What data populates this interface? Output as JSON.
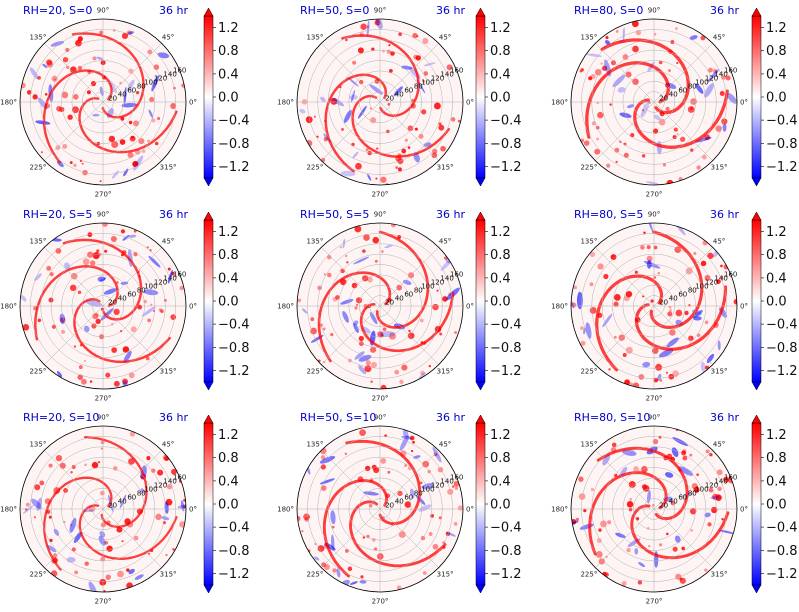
{
  "chart_data": {
    "type": "heatmap",
    "projection": "polar",
    "colormap": "bwr",
    "colors": {
      "negative": "#0000ff",
      "zero": "#ffffff",
      "positive": "#ff0000"
    },
    "angular_ticks": [
      "0°",
      "45°",
      "90°",
      "135°",
      "180°",
      "225°",
      "270°",
      "315°"
    ],
    "radial_ticks": [
      "20",
      "40",
      "60",
      "80",
      "100",
      "120",
      "140",
      "160"
    ],
    "colorbar_ticks": [
      "1.2",
      "0.8",
      "0.4",
      "0.0",
      "−0.4",
      "−0.8",
      "−1.2"
    ],
    "colorbar_values": [
      1.2,
      0.8,
      0.4,
      0.0,
      -0.4,
      -0.8,
      -1.2
    ],
    "colorbar_range": [
      -1.4,
      1.4
    ],
    "colorbar_extend": "both",
    "grid": true,
    "panels": [
      {
        "title": "RH=20, S=0",
        "time": "36 hr"
      },
      {
        "title": "RH=50, S=0",
        "time": "36 hr"
      },
      {
        "title": "RH=80, S=0",
        "time": "36 hr"
      },
      {
        "title": "RH=20, S=5",
        "time": "36 hr"
      },
      {
        "title": "RH=50, S=5",
        "time": "36 hr"
      },
      {
        "title": "RH=80, S=5",
        "time": "36 hr"
      },
      {
        "title": "RH=20, S=10",
        "time": "36 hr"
      },
      {
        "title": "RH=50, S=10",
        "time": "36 hr"
      },
      {
        "title": "RH=80, S=10",
        "time": "36 hr"
      }
    ]
  }
}
